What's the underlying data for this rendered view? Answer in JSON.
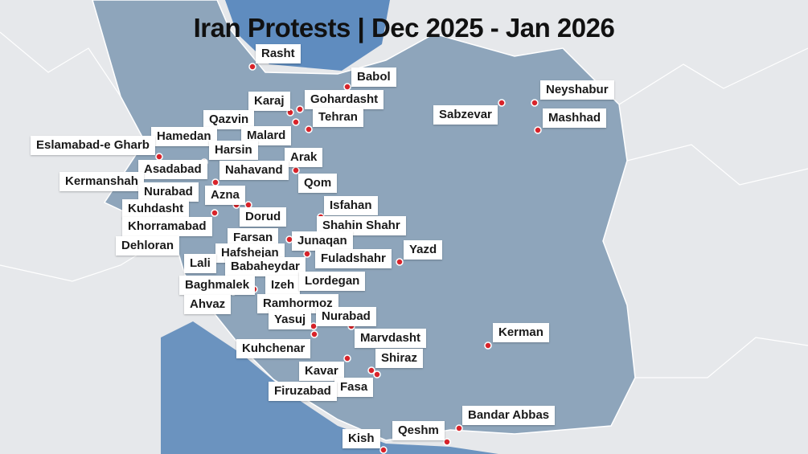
{
  "title": "Iran Protests | Dec 2025 - Jan 2026",
  "cities": [
    "Rasht",
    "Babol",
    "Karaj",
    "Gohardasht",
    "Qazvin",
    "Tehran",
    "Malard",
    "Hamedan",
    "Eslamabad-e Gharb",
    "Harsin",
    "Arak",
    "Nahavand",
    "Asadabad",
    "Kermanshah",
    "Qom",
    "Nurabad",
    "Azna",
    "Isfahan",
    "Kuhdasht",
    "Dorud",
    "Shahin Shahr",
    "Khorramabad",
    "Farsan",
    "Junaqan",
    "Dehloran",
    "Yazd",
    "Hafshejan",
    "Fuladshahr",
    "Lali",
    "Babaheydar",
    "Izeh",
    "Lordegan",
    "Baghmalek",
    "Ahvaz",
    "Ramhormoz",
    "Yasuj",
    "Nurabad",
    "Kerman",
    "Marvdasht",
    "Kuhchenar",
    "Shiraz",
    "Kavar",
    "Fasa",
    "Firuzabad",
    "Bandar Abbas",
    "Qeshm",
    "Kish",
    "Sabzevar",
    "Neyshabur",
    "Mashhad"
  ]
}
